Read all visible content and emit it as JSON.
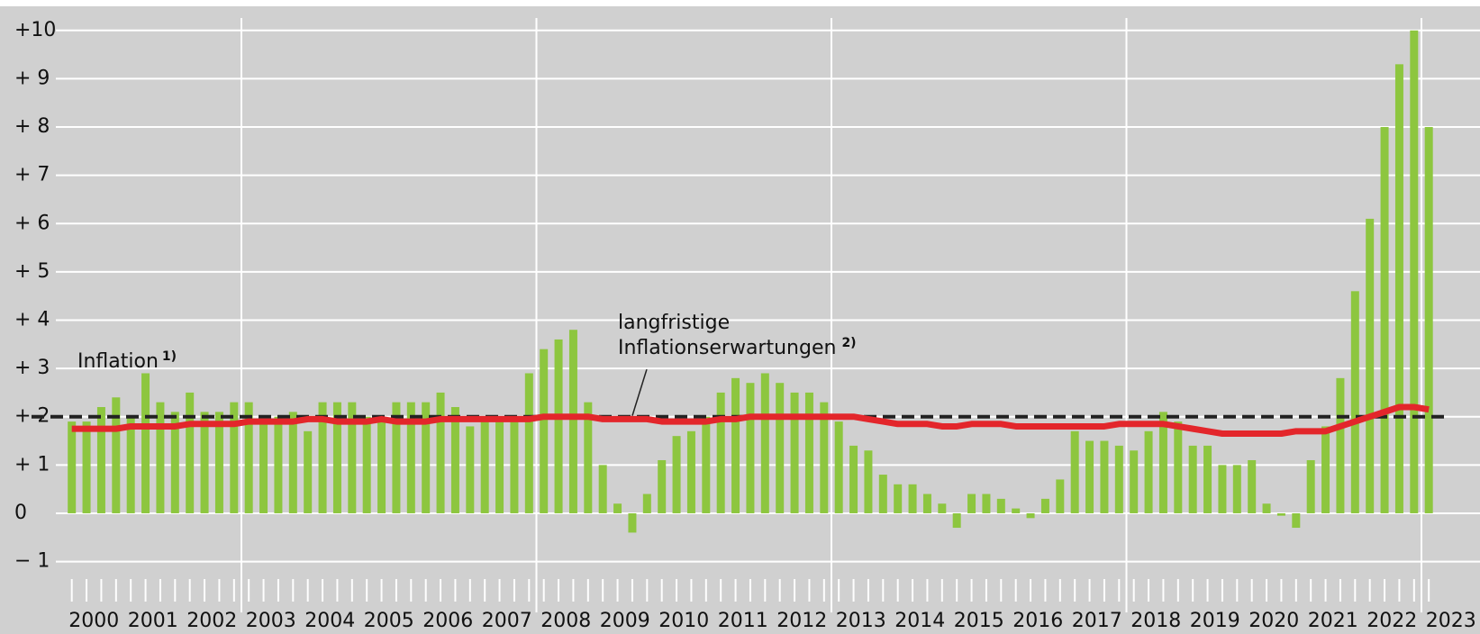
{
  "chart_data": {
    "type": "bar",
    "categories": [
      "2000",
      null,
      null,
      null,
      "2001",
      null,
      null,
      null,
      "2002",
      null,
      null,
      null,
      "2003",
      null,
      null,
      null,
      "2004",
      null,
      null,
      null,
      "2005",
      null,
      null,
      null,
      "2006",
      null,
      null,
      null,
      "2007",
      null,
      null,
      null,
      "2008",
      null,
      null,
      null,
      "2009",
      null,
      null,
      null,
      "2010",
      null,
      null,
      null,
      "2011",
      null,
      null,
      null,
      "2012",
      null,
      null,
      null,
      "2013",
      null,
      null,
      null,
      "2014",
      null,
      null,
      null,
      "2015",
      null,
      null,
      null,
      "2016",
      null,
      null,
      null,
      "2017",
      null,
      null,
      null,
      "2018",
      null,
      null,
      null,
      "2019",
      null,
      null,
      null,
      "2020",
      null,
      null,
      null,
      "2021",
      null,
      null,
      null,
      "2022",
      null,
      null,
      null,
      "2023"
    ],
    "series": [
      {
        "name": "Inflation",
        "note": "1)",
        "color": "#8dc63f",
        "type": "bar",
        "values": [
          1.9,
          1.9,
          2.2,
          2.4,
          2.0,
          2.9,
          2.3,
          2.1,
          2.5,
          2.1,
          2.1,
          2.3,
          2.3,
          1.9,
          2.0,
          2.1,
          1.7,
          2.3,
          2.3,
          2.3,
          2.0,
          1.9,
          2.3,
          2.3,
          2.3,
          2.5,
          2.2,
          1.8,
          1.9,
          1.9,
          1.9,
          2.9,
          3.4,
          3.6,
          3.8,
          2.3,
          1.0,
          0.2,
          -0.4,
          0.4,
          1.1,
          1.6,
          1.7,
          2.0,
          2.5,
          2.8,
          2.7,
          2.9,
          2.7,
          2.5,
          2.5,
          2.3,
          1.9,
          1.4,
          1.3,
          0.8,
          0.6,
          0.6,
          0.4,
          0.2,
          -0.3,
          0.4,
          0.4,
          0.3,
          0.1,
          -0.1,
          0.3,
          0.7,
          1.7,
          1.5,
          1.5,
          1.4,
          1.3,
          1.7,
          2.1,
          1.9,
          1.4,
          1.4,
          1.0,
          1.0,
          1.1,
          0.2,
          -0.05,
          -0.3,
          1.1,
          1.8,
          2.8,
          4.6,
          6.1,
          8.0,
          9.3,
          10.0,
          8.0
        ]
      },
      {
        "name": [
          "langfristige",
          "Inflationserwartungen"
        ],
        "note": "2)",
        "color": "#e3262b",
        "type": "line",
        "values": [
          1.75,
          1.75,
          1.75,
          1.75,
          1.8,
          1.8,
          1.8,
          1.8,
          1.85,
          1.85,
          1.85,
          1.85,
          1.9,
          1.9,
          1.9,
          1.9,
          1.95,
          1.95,
          1.9,
          1.9,
          1.9,
          1.95,
          1.9,
          1.9,
          1.9,
          1.95,
          1.95,
          1.95,
          1.95,
          1.95,
          1.95,
          1.95,
          2.0,
          2.0,
          2.0,
          2.0,
          1.95,
          1.95,
          1.95,
          1.95,
          1.9,
          1.9,
          1.9,
          1.9,
          1.95,
          1.95,
          2.0,
          2.0,
          2.0,
          2.0,
          2.0,
          2.0,
          2.0,
          2.0,
          1.95,
          1.9,
          1.85,
          1.85,
          1.85,
          1.8,
          1.8,
          1.85,
          1.85,
          1.85,
          1.8,
          1.8,
          1.8,
          1.8,
          1.8,
          1.8,
          1.8,
          1.85,
          1.85,
          1.85,
          1.85,
          1.8,
          1.75,
          1.7,
          1.65,
          1.65,
          1.65,
          1.65,
          1.65,
          1.7,
          1.7,
          1.7,
          1.8,
          1.9,
          2.0,
          2.1,
          2.2,
          2.2,
          2.15
        ]
      }
    ],
    "reference_line": {
      "value": 2,
      "color": "#222222",
      "dashed": true
    },
    "ylim": [
      -2.5,
      10.5
    ],
    "yticks": [
      {
        "value": -1,
        "label": "− 1"
      },
      0,
      {
        "value": 1,
        "label": "+ 1"
      },
      {
        "value": 2,
        "label": "+ 2"
      },
      {
        "value": 3,
        "label": "+ 3"
      },
      {
        "value": 4,
        "label": "+ 4"
      },
      {
        "value": 5,
        "label": "+ 5"
      },
      {
        "value": 6,
        "label": "+ 6"
      },
      {
        "value": 7,
        "label": "+ 7"
      },
      {
        "value": 8,
        "label": "+ 8"
      },
      {
        "value": 9,
        "label": "+ 9"
      },
      {
        "value": 10,
        "label": "+10"
      }
    ],
    "grid": true
  }
}
